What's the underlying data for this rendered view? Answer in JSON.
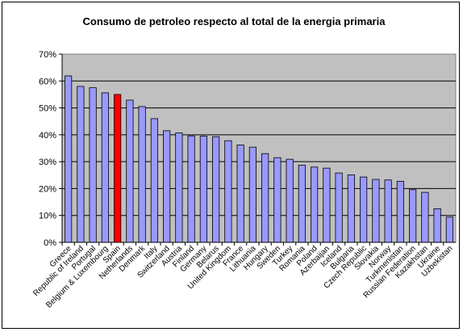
{
  "chart_data": {
    "type": "bar",
    "title": "Consumo de petroleo respecto al total de la energia primaria",
    "ylim": [
      0,
      70
    ],
    "yticks": [
      "0%",
      "10%",
      "20%",
      "30%",
      "40%",
      "50%",
      "60%",
      "70%"
    ],
    "grid": true,
    "plot_background": "#c0c0c0",
    "bar_color": "#9999ff",
    "highlight_color": "#ff0000",
    "highlight_category": "Spain",
    "categories": [
      "Greece",
      "Republic of Ireland",
      "Portugal",
      "Belgium & Luxembourg",
      "Spain",
      "Netherlands",
      "Denmark",
      "Italy",
      "Switzerland",
      "Austria",
      "Finland",
      "Germany",
      "Belarus",
      "United Kingdom",
      "France",
      "Lithuania",
      "Hungary",
      "Sweden",
      "Turkey",
      "Romania",
      "Poland",
      "Azerbaijan",
      "Iceland",
      "Bulgaria",
      "Czech Republic",
      "Slovakia",
      "Norway",
      "Turkmenistan",
      "Russian Federation",
      "Kazakhstan",
      "Ukraine",
      "Uzbekistan"
    ],
    "values": [
      61.9,
      58.0,
      57.5,
      55.6,
      55.0,
      52.9,
      50.5,
      46.0,
      41.5,
      40.7,
      39.6,
      39.5,
      39.3,
      37.8,
      36.2,
      35.4,
      33.0,
      31.5,
      30.9,
      28.7,
      28.0,
      27.6,
      25.8,
      25.1,
      24.3,
      23.4,
      23.2,
      22.7,
      19.6,
      18.6,
      12.5,
      9.4
    ]
  }
}
